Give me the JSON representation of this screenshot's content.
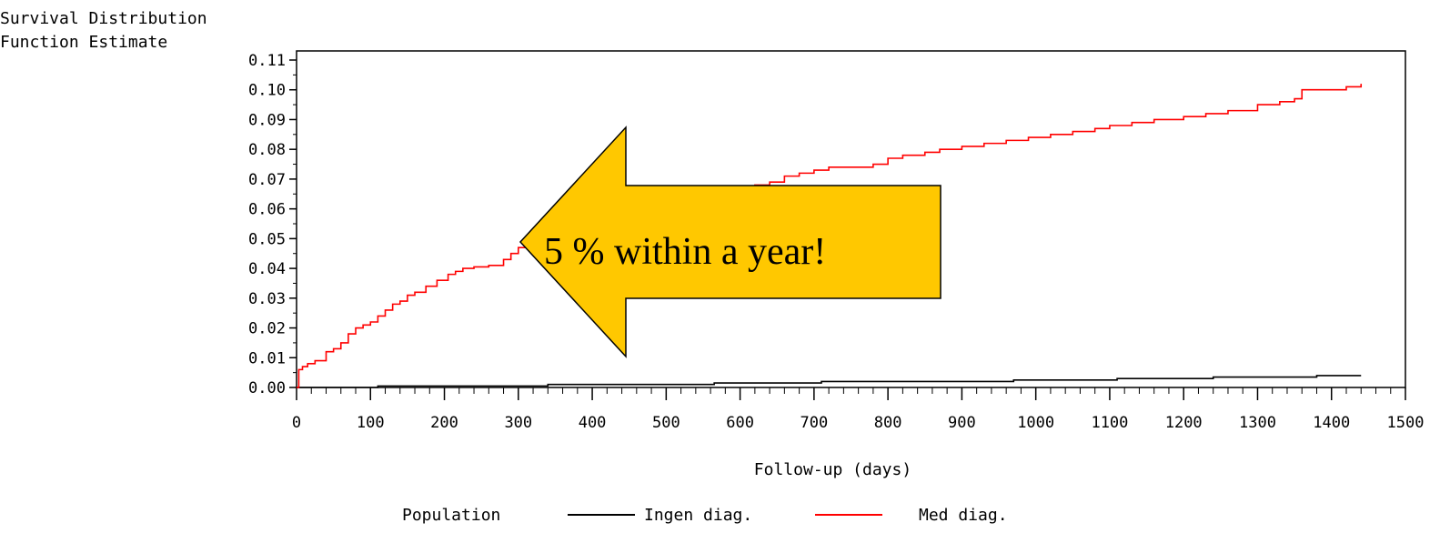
{
  "chart_data": {
    "type": "line",
    "ylabel_lines": [
      "Survival Distribution",
      "Function Estimate"
    ],
    "xlabel": "Follow-up (days)",
    "xlim": [
      0,
      1500
    ],
    "ylim": [
      0,
      0.11
    ],
    "xticks": [
      0,
      100,
      200,
      300,
      400,
      500,
      600,
      700,
      800,
      900,
      1000,
      1100,
      1200,
      1300,
      1400,
      1500
    ],
    "xtick_labels": [
      "0",
      "100",
      "200",
      "300",
      "400",
      "500",
      "600",
      "700",
      "800",
      "900",
      "1000",
      "1100",
      "1200",
      "1300",
      "1400",
      "1500"
    ],
    "yticks": [
      0,
      0.01,
      0.02,
      0.03,
      0.04,
      0.05,
      0.06,
      0.07,
      0.08,
      0.09,
      0.1,
      0.11
    ],
    "ytick_labels": [
      "0.00",
      "0.01",
      "0.02",
      "0.03",
      "0.04",
      "0.05",
      "0.06",
      "0.07",
      "0.08",
      "0.09",
      "0.10",
      "0.11"
    ],
    "legend": {
      "title": "Population",
      "position": "bottom"
    },
    "series": [
      {
        "name": "Ingen diag.",
        "color": "#000000",
        "step": true,
        "x": [
          0,
          110,
          340,
          565,
          710,
          970,
          1110,
          1240,
          1380,
          1440
        ],
        "y": [
          0.0,
          0.0005,
          0.001,
          0.0015,
          0.002,
          0.0025,
          0.003,
          0.0035,
          0.004,
          0.004
        ]
      },
      {
        "name": "Med diag.",
        "color": "#ff0000",
        "step": true,
        "x": [
          0,
          3,
          8,
          15,
          25,
          40,
          50,
          60,
          70,
          80,
          90,
          100,
          110,
          120,
          130,
          140,
          150,
          160,
          175,
          190,
          205,
          215,
          225,
          240,
          260,
          280,
          290,
          300,
          320,
          340,
          360,
          380,
          400,
          420,
          440,
          460,
          480,
          500,
          520,
          540,
          560,
          580,
          600,
          620,
          640,
          660,
          680,
          700,
          720,
          750,
          780,
          800,
          820,
          850,
          870,
          900,
          930,
          960,
          990,
          1020,
          1050,
          1080,
          1100,
          1130,
          1160,
          1200,
          1230,
          1260,
          1300,
          1330,
          1350,
          1360,
          1390,
          1420,
          1440
        ],
        "y": [
          0.0,
          0.006,
          0.007,
          0.008,
          0.009,
          0.012,
          0.013,
          0.015,
          0.018,
          0.02,
          0.021,
          0.022,
          0.024,
          0.026,
          0.028,
          0.029,
          0.031,
          0.032,
          0.034,
          0.036,
          0.038,
          0.039,
          0.04,
          0.0405,
          0.041,
          0.043,
          0.045,
          0.047,
          0.049,
          0.051,
          0.053,
          0.054,
          0.0555,
          0.057,
          0.058,
          0.0595,
          0.061,
          0.062,
          0.063,
          0.064,
          0.065,
          0.066,
          0.067,
          0.068,
          0.069,
          0.071,
          0.072,
          0.073,
          0.074,
          0.074,
          0.075,
          0.077,
          0.078,
          0.079,
          0.08,
          0.081,
          0.082,
          0.083,
          0.084,
          0.085,
          0.086,
          0.087,
          0.088,
          0.089,
          0.09,
          0.091,
          0.092,
          0.093,
          0.095,
          0.096,
          0.097,
          0.1,
          0.1,
          0.101,
          0.102
        ]
      }
    ],
    "annotation": {
      "text": "5 % within a year!",
      "fill": "#ffc800",
      "stroke": "#000000"
    }
  }
}
